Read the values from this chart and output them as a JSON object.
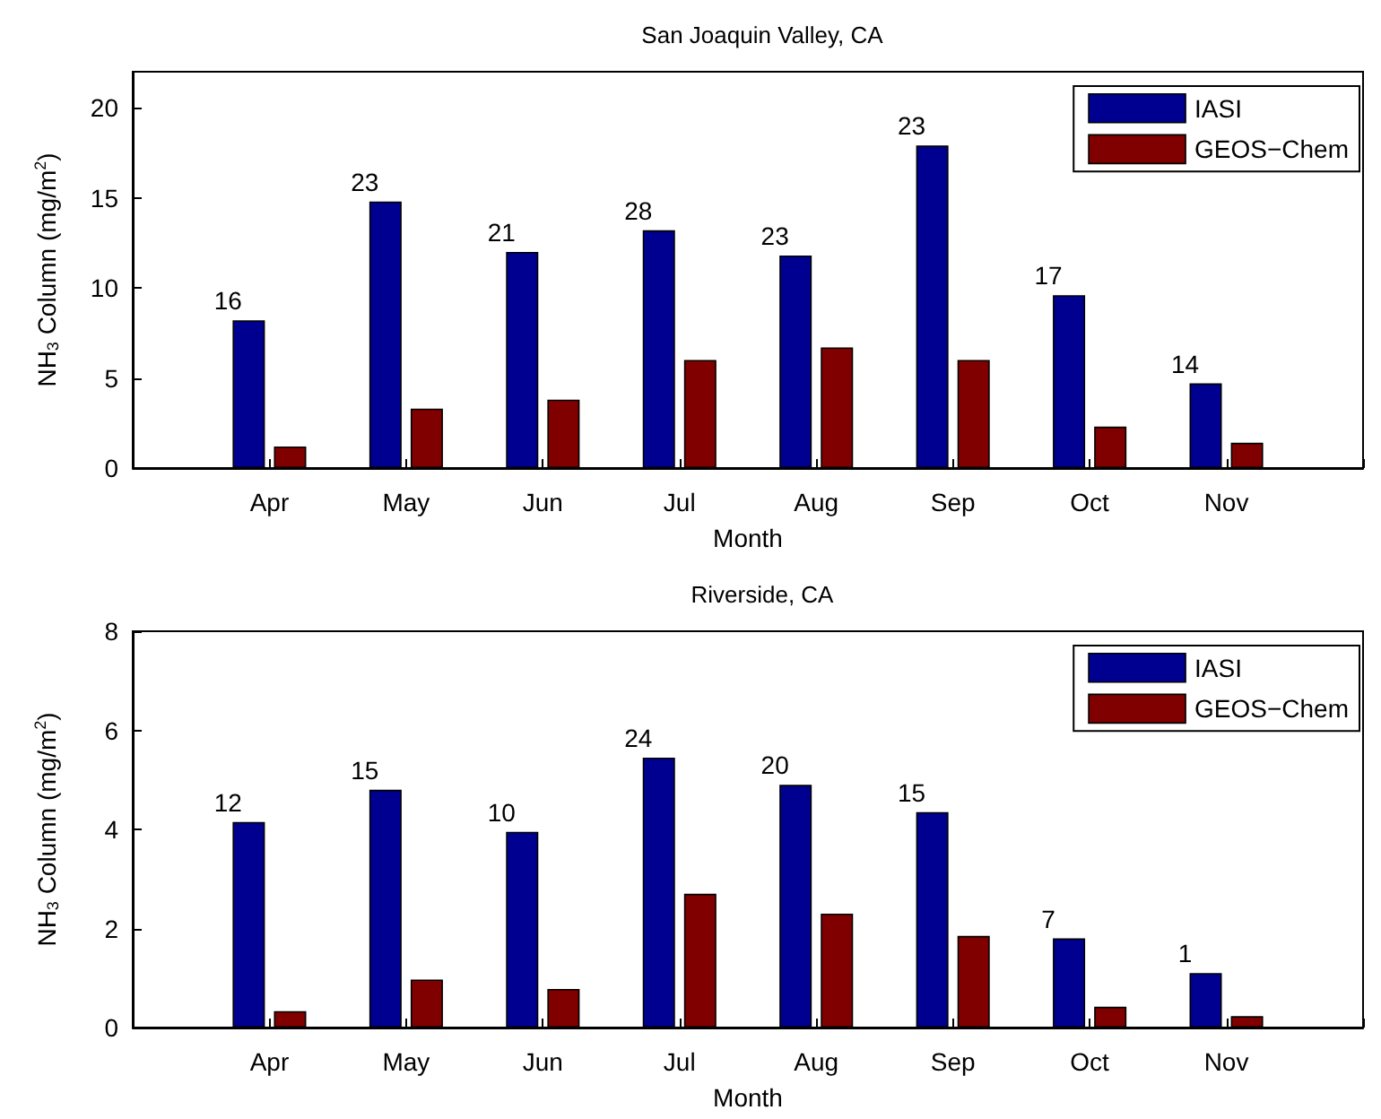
{
  "chart_data": [
    {
      "type": "bar",
      "title": "San Joaquin Valley, CA",
      "xlabel": "Month",
      "ylabel": "NH$_{3}$ Column (mg/m$^{2}$)",
      "categories": [
        null,
        "Apr",
        "May",
        "Jun",
        "Jul",
        "Aug",
        "Sep",
        "Oct",
        "Nov",
        null
      ],
      "series": [
        {
          "name": "IASI",
          "color": "#000090",
          "values": [
            null,
            8.2,
            14.8,
            12.0,
            13.2,
            11.8,
            17.9,
            9.6,
            4.7,
            null
          ]
        },
        {
          "name": "GEOS−Chem",
          "color": "#800000",
          "values": [
            null,
            1.2,
            3.3,
            3.8,
            6.0,
            6.7,
            6.0,
            2.3,
            1.4,
            null
          ]
        }
      ],
      "ylim": [
        0,
        22
      ],
      "yticks": [
        0,
        5,
        10,
        15,
        20
      ],
      "legend": "top right",
      "annotations": [
        {
          "text": "16",
          "x": "Apr",
          "y": 8.2
        },
        {
          "text": "23",
          "x": "May",
          "y": 14.8
        },
        {
          "text": "21",
          "x": "Jun",
          "y": 12.0
        },
        {
          "text": "28",
          "x": "Jul",
          "y": 13.2
        },
        {
          "text": "23",
          "x": "Aug",
          "y": 11.8
        },
        {
          "text": "23",
          "x": "Sep",
          "y": 17.9
        },
        {
          "text": "17",
          "x": "Oct",
          "y": 9.6
        },
        {
          "text": "14",
          "x": "Nov",
          "y": 4.7
        }
      ]
    },
    {
      "type": "bar",
      "title": "Riverside, CA",
      "xlabel": "Month",
      "ylabel": "NH$_{3}$ Column (mg/m$^{2}$)",
      "categories": [
        null,
        "Apr",
        "May",
        "Jun",
        "Jul",
        "Aug",
        "Sep",
        "Oct",
        "Nov",
        null
      ],
      "series": [
        {
          "name": "IASI",
          "color": "#000090",
          "values": [
            null,
            4.15,
            4.8,
            3.95,
            5.45,
            4.9,
            4.35,
            1.8,
            1.1,
            null
          ]
        },
        {
          "name": "GEOS−Chem",
          "color": "#800000",
          "values": [
            null,
            0.33,
            0.97,
            0.78,
            2.7,
            2.3,
            1.85,
            0.42,
            0.23,
            null
          ]
        }
      ],
      "ylim": [
        0,
        8
      ],
      "yticks": [
        0,
        2,
        4,
        6,
        8
      ],
      "legend": "top right",
      "annotations": [
        {
          "text": "12",
          "x": "Apr",
          "y": 4.15
        },
        {
          "text": "15",
          "x": "May",
          "y": 4.8
        },
        {
          "text": "10",
          "x": "Jun",
          "y": 3.95
        },
        {
          "text": "24",
          "x": "Jul",
          "y": 5.45
        },
        {
          "text": "20",
          "x": "Aug",
          "y": 4.9
        },
        {
          "text": "15",
          "x": "Sep",
          "y": 4.35
        },
        {
          "text": "7",
          "x": "Oct",
          "y": 1.8
        },
        {
          "text": "1",
          "x": "Nov",
          "y": 1.1
        }
      ]
    }
  ]
}
